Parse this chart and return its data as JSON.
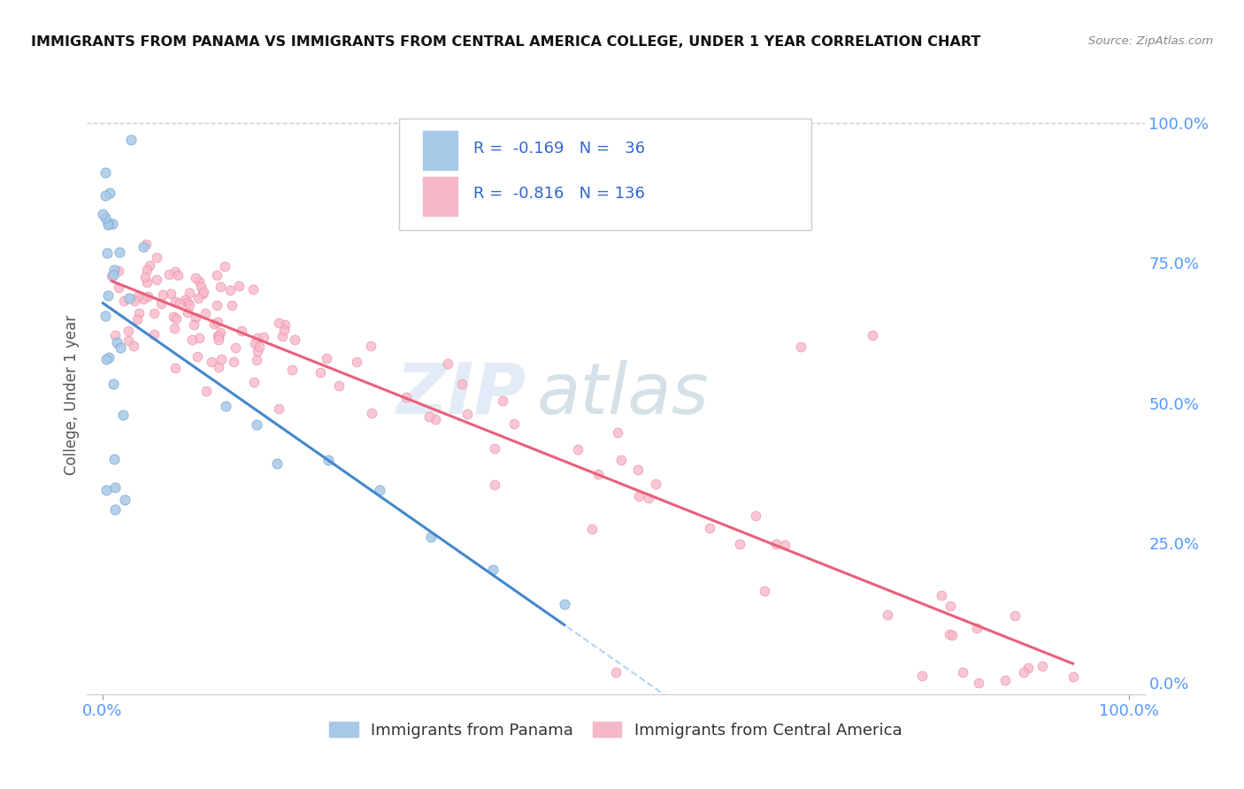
{
  "title": "IMMIGRANTS FROM PANAMA VS IMMIGRANTS FROM CENTRAL AMERICA COLLEGE, UNDER 1 YEAR CORRELATION CHART",
  "source_text": "Source: ZipAtlas.com",
  "ylabel": "College, Under 1 year",
  "legend_entries": [
    {
      "label": "Immigrants from Panama",
      "color": "#aec6e8",
      "R": "-0.169",
      "N": "36"
    },
    {
      "label": "Immigrants from Central America",
      "color": "#f4b8c1",
      "R": "-0.816",
      "N": "136"
    }
  ],
  "watermark_zip": "ZIP",
  "watermark_atlas": "atlas",
  "axis_color": "#5599ff",
  "grid_color": "#dddddd",
  "title_color": "#111111",
  "source_color": "#888888"
}
